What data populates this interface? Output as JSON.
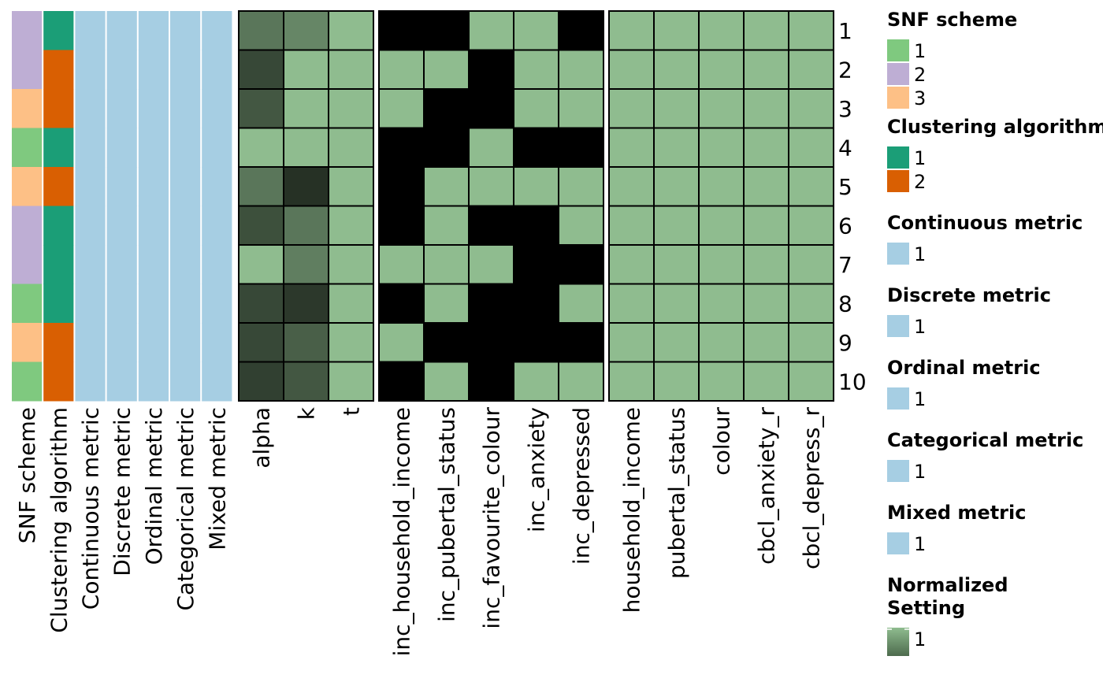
{
  "chart_data": {
    "type": "heatmap",
    "rows": [
      "1",
      "2",
      "3",
      "4",
      "5",
      "6",
      "7",
      "8",
      "9",
      "10"
    ],
    "annotation_columns": [
      "SNF scheme",
      "Clustering algorithm",
      "Continuous metric",
      "Discrete metric",
      "Ordinal metric",
      "Categorical metric",
      "Mixed metric"
    ],
    "annotations": {
      "SNF scheme": [
        2,
        2,
        3,
        1,
        3,
        2,
        2,
        1,
        3,
        1
      ],
      "Clustering algorithm": [
        1,
        2,
        2,
        1,
        2,
        1,
        1,
        1,
        2,
        2
      ],
      "Continuous metric": [
        1,
        1,
        1,
        1,
        1,
        1,
        1,
        1,
        1,
        1
      ],
      "Discrete metric": [
        1,
        1,
        1,
        1,
        1,
        1,
        1,
        1,
        1,
        1
      ],
      "Ordinal metric": [
        1,
        1,
        1,
        1,
        1,
        1,
        1,
        1,
        1,
        1
      ],
      "Categorical metric": [
        1,
        1,
        1,
        1,
        1,
        1,
        1,
        1,
        1,
        1
      ],
      "Mixed metric": [
        1,
        1,
        1,
        1,
        1,
        1,
        1,
        1,
        1,
        1
      ]
    },
    "setting_columns": [
      "alpha",
      "k",
      "t"
    ],
    "settings": [
      [
        0.55,
        0.65,
        1.0
      ],
      [
        0.25,
        1.0,
        1.0
      ],
      [
        0.35,
        1.0,
        1.0
      ],
      [
        1.0,
        1.0,
        1.0
      ],
      [
        0.55,
        0.1,
        1.0
      ],
      [
        0.3,
        0.55,
        1.0
      ],
      [
        1.0,
        0.6,
        1.0
      ],
      [
        0.25,
        0.15,
        1.0
      ],
      [
        0.25,
        0.4,
        1.0
      ],
      [
        0.2,
        0.35,
        1.0
      ]
    ],
    "inclusion_columns": [
      "inc_household_income",
      "inc_pubertal_status",
      "inc_favourite_colour",
      "inc_anxiety",
      "inc_depressed"
    ],
    "inclusion": [
      [
        0,
        0,
        1,
        1,
        0
      ],
      [
        1,
        1,
        0,
        1,
        1
      ],
      [
        1,
        0,
        0,
        1,
        1
      ],
      [
        0,
        0,
        1,
        0,
        0
      ],
      [
        0,
        1,
        1,
        1,
        1
      ],
      [
        0,
        1,
        0,
        0,
        1
      ],
      [
        1,
        1,
        1,
        0,
        0
      ],
      [
        0,
        1,
        0,
        0,
        1
      ],
      [
        1,
        0,
        0,
        0,
        0
      ],
      [
        0,
        1,
        0,
        1,
        1
      ]
    ],
    "distance_columns": [
      "household_income",
      "pubertal_status",
      "colour",
      "cbcl_anxiety_r",
      "cbcl_depress_r"
    ],
    "distance": [
      [
        1,
        1,
        1,
        1,
        1
      ],
      [
        1,
        1,
        1,
        1,
        1
      ],
      [
        1,
        1,
        1,
        1,
        1
      ],
      [
        1,
        1,
        1,
        1,
        1
      ],
      [
        1,
        1,
        1,
        1,
        1
      ],
      [
        1,
        1,
        1,
        1,
        1
      ],
      [
        1,
        1,
        1,
        1,
        1
      ],
      [
        1,
        1,
        1,
        1,
        1
      ],
      [
        1,
        1,
        1,
        1,
        1
      ],
      [
        1,
        1,
        1,
        1,
        1
      ]
    ],
    "legends": [
      {
        "title": "SNF scheme",
        "items": [
          {
            "label": "1",
            "color": "#7FC97F"
          },
          {
            "label": "2",
            "color": "#BEAED4"
          },
          {
            "label": "3",
            "color": "#FDC086"
          }
        ]
      },
      {
        "title": "Clustering algorithm",
        "items": [
          {
            "label": "1",
            "color": "#1B9E77"
          },
          {
            "label": "2",
            "color": "#D95F02"
          }
        ]
      },
      {
        "title": "Continuous metric",
        "items": [
          {
            "label": "1",
            "color": "#A6CEE3"
          }
        ]
      },
      {
        "title": "Discrete metric",
        "items": [
          {
            "label": "1",
            "color": "#A6CEE3"
          }
        ]
      },
      {
        "title": "Ordinal metric",
        "items": [
          {
            "label": "1",
            "color": "#A6CEE3"
          }
        ]
      },
      {
        "title": "Categorical metric",
        "items": [
          {
            "label": "1",
            "color": "#A6CEE3"
          }
        ]
      },
      {
        "title": "Mixed metric",
        "items": [
          {
            "label": "1",
            "color": "#A6CEE3"
          }
        ]
      },
      {
        "title": "Normalized\nSetting",
        "items": [
          {
            "label": "1",
            "color": "gradient"
          }
        ]
      }
    ],
    "colors": {
      "snf": {
        "1": "#7FC97F",
        "2": "#BEAED4",
        "3": "#FDC086"
      },
      "alg": {
        "1": "#1B9E77",
        "2": "#D95F02"
      },
      "metric": "#A6CEE3",
      "green": "#8FBC8F",
      "dark": "#1a2119",
      "excluded": "#000000"
    }
  }
}
